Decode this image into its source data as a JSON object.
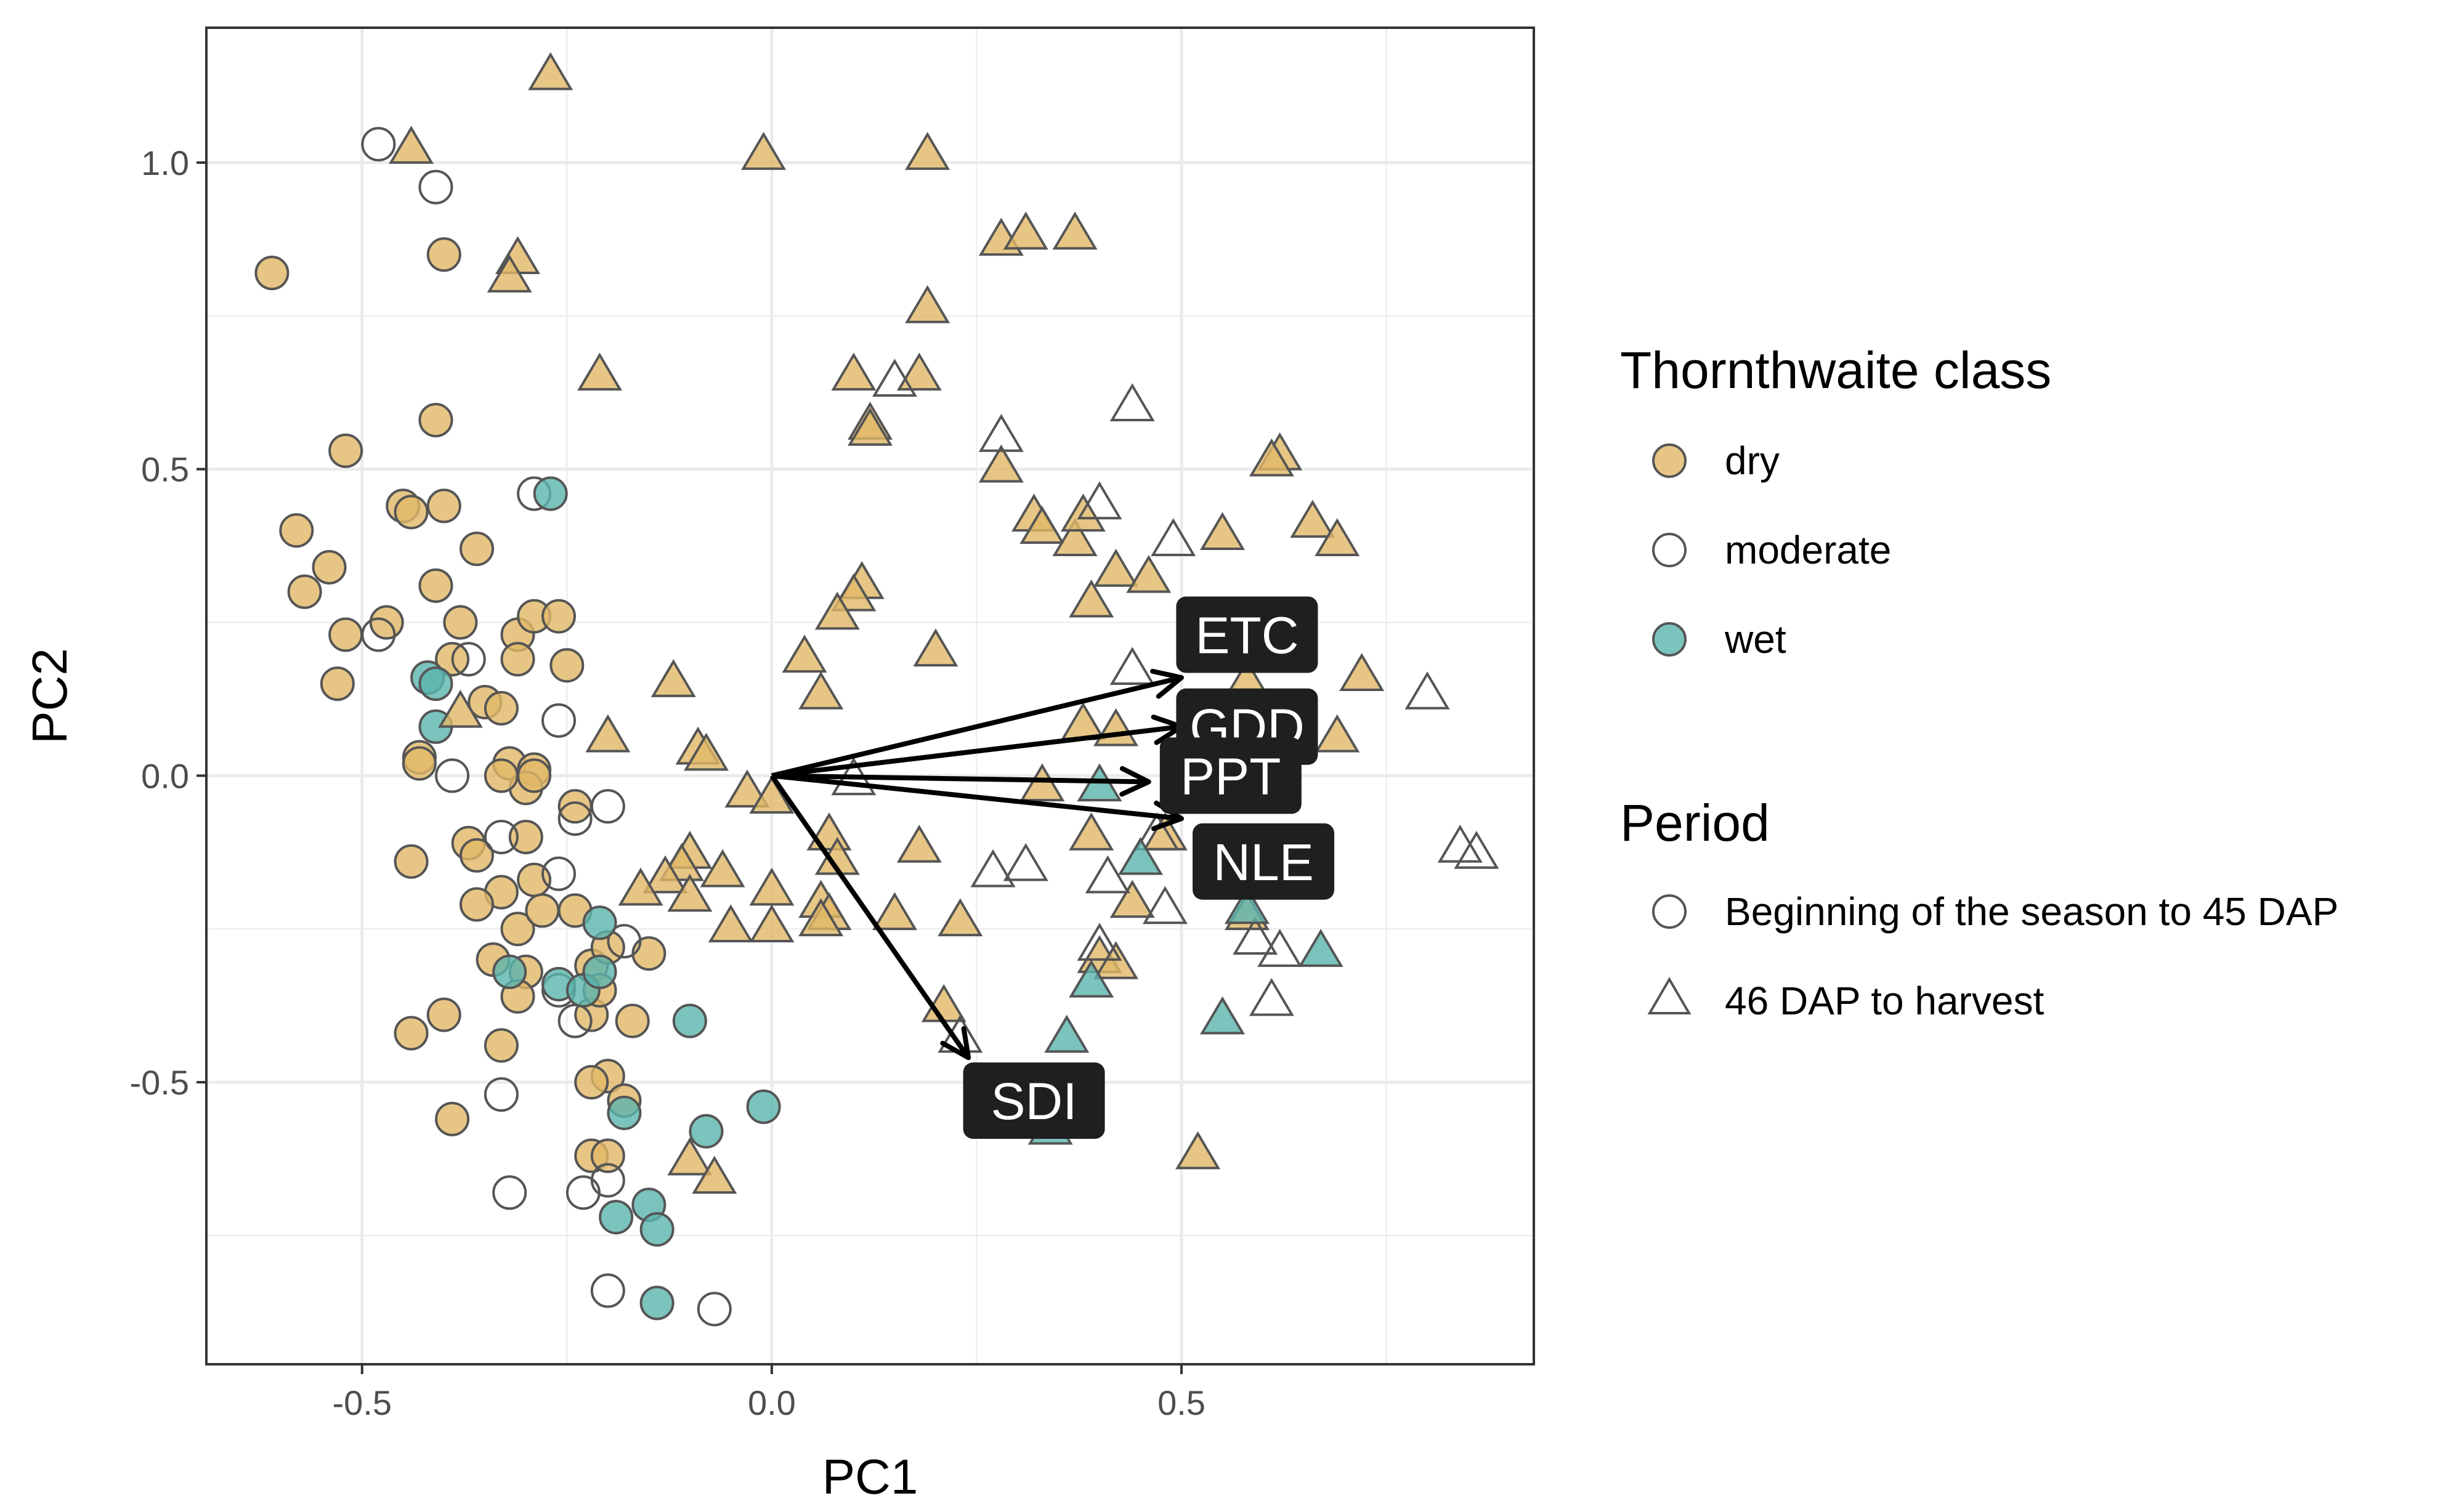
{
  "chart_data": {
    "type": "scatter",
    "title": "",
    "xlabel": "PC1",
    "ylabel": "PC2",
    "xlim": [
      -0.69,
      0.93
    ],
    "ylim": [
      -0.96,
      1.22
    ],
    "xticks": [
      -0.5,
      0.0,
      0.5
    ],
    "yticks": [
      -0.5,
      0.0,
      0.5,
      1.0
    ],
    "xtick_labels": [
      "-0.5",
      "0.0",
      "0.5"
    ],
    "ytick_labels": [
      "-0.5",
      "0.0",
      "0.5",
      "1.0"
    ],
    "grid": true,
    "legend_position": "right",
    "colors": {
      "dry": "#E1B866",
      "moderate": "#FFFFFF",
      "wet": "#5AB4AC"
    },
    "legends": [
      {
        "title": "Thornthwaite class",
        "kind": "color",
        "entries": [
          {
            "label": "dry",
            "key": "dry"
          },
          {
            "label": "moderate",
            "key": "moderate"
          },
          {
            "label": "wet",
            "key": "wet"
          }
        ]
      },
      {
        "title": "Period",
        "kind": "shape",
        "entries": [
          {
            "label": "Beginning of the season to 45 DAP",
            "key": "circle"
          },
          {
            "label": "46 DAP to harvest",
            "key": "triangle"
          }
        ]
      }
    ],
    "series": [
      {
        "class": "dry",
        "shape": "circle",
        "points": [
          [
            -0.61,
            0.82
          ],
          [
            -0.4,
            0.85
          ],
          [
            -0.52,
            0.53
          ],
          [
            -0.41,
            0.58
          ],
          [
            -0.58,
            0.4
          ],
          [
            -0.45,
            0.44
          ],
          [
            -0.44,
            0.43
          ],
          [
            -0.4,
            0.44
          ],
          [
            -0.54,
            0.34
          ],
          [
            -0.57,
            0.3
          ],
          [
            -0.36,
            0.37
          ],
          [
            -0.52,
            0.23
          ],
          [
            -0.47,
            0.25
          ],
          [
            -0.41,
            0.31
          ],
          [
            -0.38,
            0.25
          ],
          [
            -0.53,
            0.15
          ],
          [
            -0.39,
            0.19
          ],
          [
            -0.31,
            0.23
          ],
          [
            -0.31,
            0.19
          ],
          [
            -0.29,
            0.26
          ],
          [
            -0.26,
            0.26
          ],
          [
            -0.25,
            0.18
          ],
          [
            -0.35,
            0.12
          ],
          [
            -0.33,
            0.11
          ],
          [
            -0.43,
            0.03
          ],
          [
            -0.43,
            0.02
          ],
          [
            -0.32,
            0.02
          ],
          [
            -0.29,
            0.01
          ],
          [
            -0.3,
            -0.02
          ],
          [
            -0.33,
            0.0
          ],
          [
            -0.29,
            0.0
          ],
          [
            -0.24,
            -0.05
          ],
          [
            -0.3,
            -0.1
          ],
          [
            -0.44,
            -0.14
          ],
          [
            -0.37,
            -0.11
          ],
          [
            -0.36,
            -0.13
          ],
          [
            -0.33,
            -0.19
          ],
          [
            -0.36,
            -0.21
          ],
          [
            -0.29,
            -0.17
          ],
          [
            -0.31,
            -0.25
          ],
          [
            -0.28,
            -0.22
          ],
          [
            -0.24,
            -0.22
          ],
          [
            -0.34,
            -0.3
          ],
          [
            -0.3,
            -0.32
          ],
          [
            -0.31,
            -0.36
          ],
          [
            -0.22,
            -0.31
          ],
          [
            -0.2,
            -0.28
          ],
          [
            -0.15,
            -0.29
          ],
          [
            -0.4,
            -0.39
          ],
          [
            -0.44,
            -0.42
          ],
          [
            -0.22,
            -0.39
          ],
          [
            -0.17,
            -0.4
          ],
          [
            -0.33,
            -0.44
          ],
          [
            -0.21,
            -0.35
          ],
          [
            -0.2,
            -0.49
          ],
          [
            -0.22,
            -0.5
          ],
          [
            -0.18,
            -0.53
          ],
          [
            -0.39,
            -0.56
          ],
          [
            -0.22,
            -0.62
          ],
          [
            -0.2,
            -0.62
          ]
        ]
      },
      {
        "class": "moderate",
        "shape": "circle",
        "points": [
          [
            -0.48,
            1.03
          ],
          [
            -0.41,
            0.96
          ],
          [
            -0.29,
            0.46
          ],
          [
            -0.48,
            0.23
          ],
          [
            -0.37,
            0.19
          ],
          [
            -0.26,
            0.09
          ],
          [
            -0.39,
            0.0
          ],
          [
            -0.33,
            -0.1
          ],
          [
            -0.24,
            -0.07
          ],
          [
            -0.2,
            -0.05
          ],
          [
            -0.26,
            -0.16
          ],
          [
            -0.18,
            -0.27
          ],
          [
            -0.24,
            -0.4
          ],
          [
            -0.33,
            -0.52
          ],
          [
            -0.32,
            -0.68
          ],
          [
            -0.23,
            -0.68
          ],
          [
            -0.2,
            -0.66
          ],
          [
            -0.2,
            -0.84
          ],
          [
            -0.07,
            -0.87
          ],
          [
            -0.26,
            -0.35
          ]
        ]
      },
      {
        "class": "wet",
        "shape": "circle",
        "points": [
          [
            -0.27,
            0.46
          ],
          [
            -0.42,
            0.16
          ],
          [
            -0.41,
            0.15
          ],
          [
            -0.41,
            0.08
          ],
          [
            -0.21,
            -0.24
          ],
          [
            -0.32,
            -0.32
          ],
          [
            -0.26,
            -0.34
          ],
          [
            -0.23,
            -0.35
          ],
          [
            -0.21,
            -0.32
          ],
          [
            -0.1,
            -0.4
          ],
          [
            -0.18,
            -0.55
          ],
          [
            -0.01,
            -0.54
          ],
          [
            -0.08,
            -0.58
          ],
          [
            -0.15,
            -0.7
          ],
          [
            -0.19,
            -0.72
          ],
          [
            -0.14,
            -0.74
          ],
          [
            -0.14,
            -0.86
          ]
        ]
      },
      {
        "class": "dry",
        "shape": "triangle",
        "points": [
          [
            -0.27,
            1.14
          ],
          [
            -0.44,
            1.02
          ],
          [
            -0.01,
            1.01
          ],
          [
            0.19,
            1.01
          ],
          [
            -0.31,
            0.84
          ],
          [
            -0.32,
            0.81
          ],
          [
            0.28,
            0.87
          ],
          [
            0.31,
            0.88
          ],
          [
            0.37,
            0.88
          ],
          [
            0.19,
            0.76
          ],
          [
            -0.21,
            0.65
          ],
          [
            0.1,
            0.65
          ],
          [
            0.18,
            0.65
          ],
          [
            0.12,
            0.57
          ],
          [
            0.12,
            0.56
          ],
          [
            0.28,
            0.5
          ],
          [
            0.62,
            0.52
          ],
          [
            0.61,
            0.51
          ],
          [
            0.32,
            0.42
          ],
          [
            0.33,
            0.4
          ],
          [
            0.37,
            0.38
          ],
          [
            0.38,
            0.42
          ],
          [
            0.55,
            0.39
          ],
          [
            0.66,
            0.41
          ],
          [
            0.69,
            0.38
          ],
          [
            0.42,
            0.33
          ],
          [
            0.46,
            0.32
          ],
          [
            0.11,
            0.31
          ],
          [
            0.1,
            0.29
          ],
          [
            0.08,
            0.26
          ],
          [
            0.39,
            0.28
          ],
          [
            0.2,
            0.2
          ],
          [
            0.04,
            0.19
          ],
          [
            0.72,
            0.16
          ],
          [
            0.06,
            0.13
          ],
          [
            -0.12,
            0.15
          ],
          [
            0.58,
            0.15
          ],
          [
            -0.38,
            0.1
          ],
          [
            -0.09,
            0.04
          ],
          [
            -0.08,
            0.03
          ],
          [
            -0.2,
            0.06
          ],
          [
            0.38,
            0.08
          ],
          [
            0.42,
            0.07
          ],
          [
            0.69,
            0.06
          ],
          [
            -0.03,
            -0.03
          ],
          [
            0.0,
            -0.04
          ],
          [
            0.07,
            -0.1
          ],
          [
            0.08,
            -0.14
          ],
          [
            0.18,
            -0.12
          ],
          [
            -0.1,
            -0.13
          ],
          [
            -0.11,
            -0.15
          ],
          [
            -0.06,
            -0.16
          ],
          [
            -0.13,
            -0.17
          ],
          [
            -0.16,
            -0.19
          ],
          [
            -0.1,
            -0.2
          ],
          [
            0.0,
            -0.19
          ],
          [
            0.06,
            -0.21
          ],
          [
            0.07,
            -0.23
          ],
          [
            0.06,
            -0.24
          ],
          [
            0.0,
            -0.25
          ],
          [
            -0.05,
            -0.25
          ],
          [
            0.15,
            -0.23
          ],
          [
            0.23,
            -0.24
          ],
          [
            0.4,
            -0.3
          ],
          [
            0.42,
            -0.31
          ],
          [
            0.44,
            -0.21
          ],
          [
            0.39,
            -0.1
          ],
          [
            0.48,
            -0.1
          ],
          [
            0.56,
            -0.18
          ],
          [
            0.58,
            -0.23
          ],
          [
            0.21,
            -0.38
          ],
          [
            -0.1,
            -0.63
          ],
          [
            -0.07,
            -0.66
          ],
          [
            0.52,
            -0.62
          ],
          [
            0.33,
            -0.02
          ]
        ]
      },
      {
        "class": "moderate",
        "shape": "triangle",
        "points": [
          [
            0.15,
            0.64
          ],
          [
            0.44,
            0.6
          ],
          [
            0.28,
            0.55
          ],
          [
            0.4,
            0.44
          ],
          [
            0.49,
            0.38
          ],
          [
            0.8,
            0.13
          ],
          [
            0.44,
            0.17
          ],
          [
            0.1,
            -0.01
          ],
          [
            0.27,
            -0.16
          ],
          [
            0.31,
            -0.15
          ],
          [
            0.41,
            -0.17
          ],
          [
            0.47,
            -0.1
          ],
          [
            0.48,
            -0.22
          ],
          [
            0.59,
            -0.27
          ],
          [
            0.62,
            -0.29
          ],
          [
            0.61,
            -0.37
          ],
          [
            0.4,
            -0.28
          ],
          [
            0.84,
            -0.12
          ],
          [
            0.86,
            -0.13
          ],
          [
            0.23,
            -0.43
          ],
          [
            0.63,
            -0.18
          ]
        ]
      },
      {
        "class": "wet",
        "shape": "triangle",
        "points": [
          [
            0.39,
            -0.34
          ],
          [
            0.36,
            -0.43
          ],
          [
            0.55,
            -0.4
          ],
          [
            0.67,
            -0.29
          ],
          [
            0.34,
            -0.58
          ],
          [
            0.45,
            -0.14
          ],
          [
            0.58,
            -0.22
          ],
          [
            0.4,
            -0.02
          ]
        ]
      }
    ],
    "arrows": [
      {
        "label": "ETC",
        "x": 0.5,
        "y": 0.16,
        "label_x": 0.58,
        "label_y": 0.23
      },
      {
        "label": "GDD",
        "x": 0.5,
        "y": 0.08,
        "label_x": 0.58,
        "label_y": 0.08
      },
      {
        "label": "PPT",
        "x": 0.46,
        "y": -0.01,
        "label_x": 0.56,
        "label_y": 0.0
      },
      {
        "label": "NLE",
        "x": 0.5,
        "y": -0.07,
        "label_x": 0.6,
        "label_y": -0.14
      },
      {
        "label": "SDI",
        "x": 0.24,
        "y": -0.46,
        "label_x": 0.32,
        "label_y": -0.53
      }
    ]
  }
}
